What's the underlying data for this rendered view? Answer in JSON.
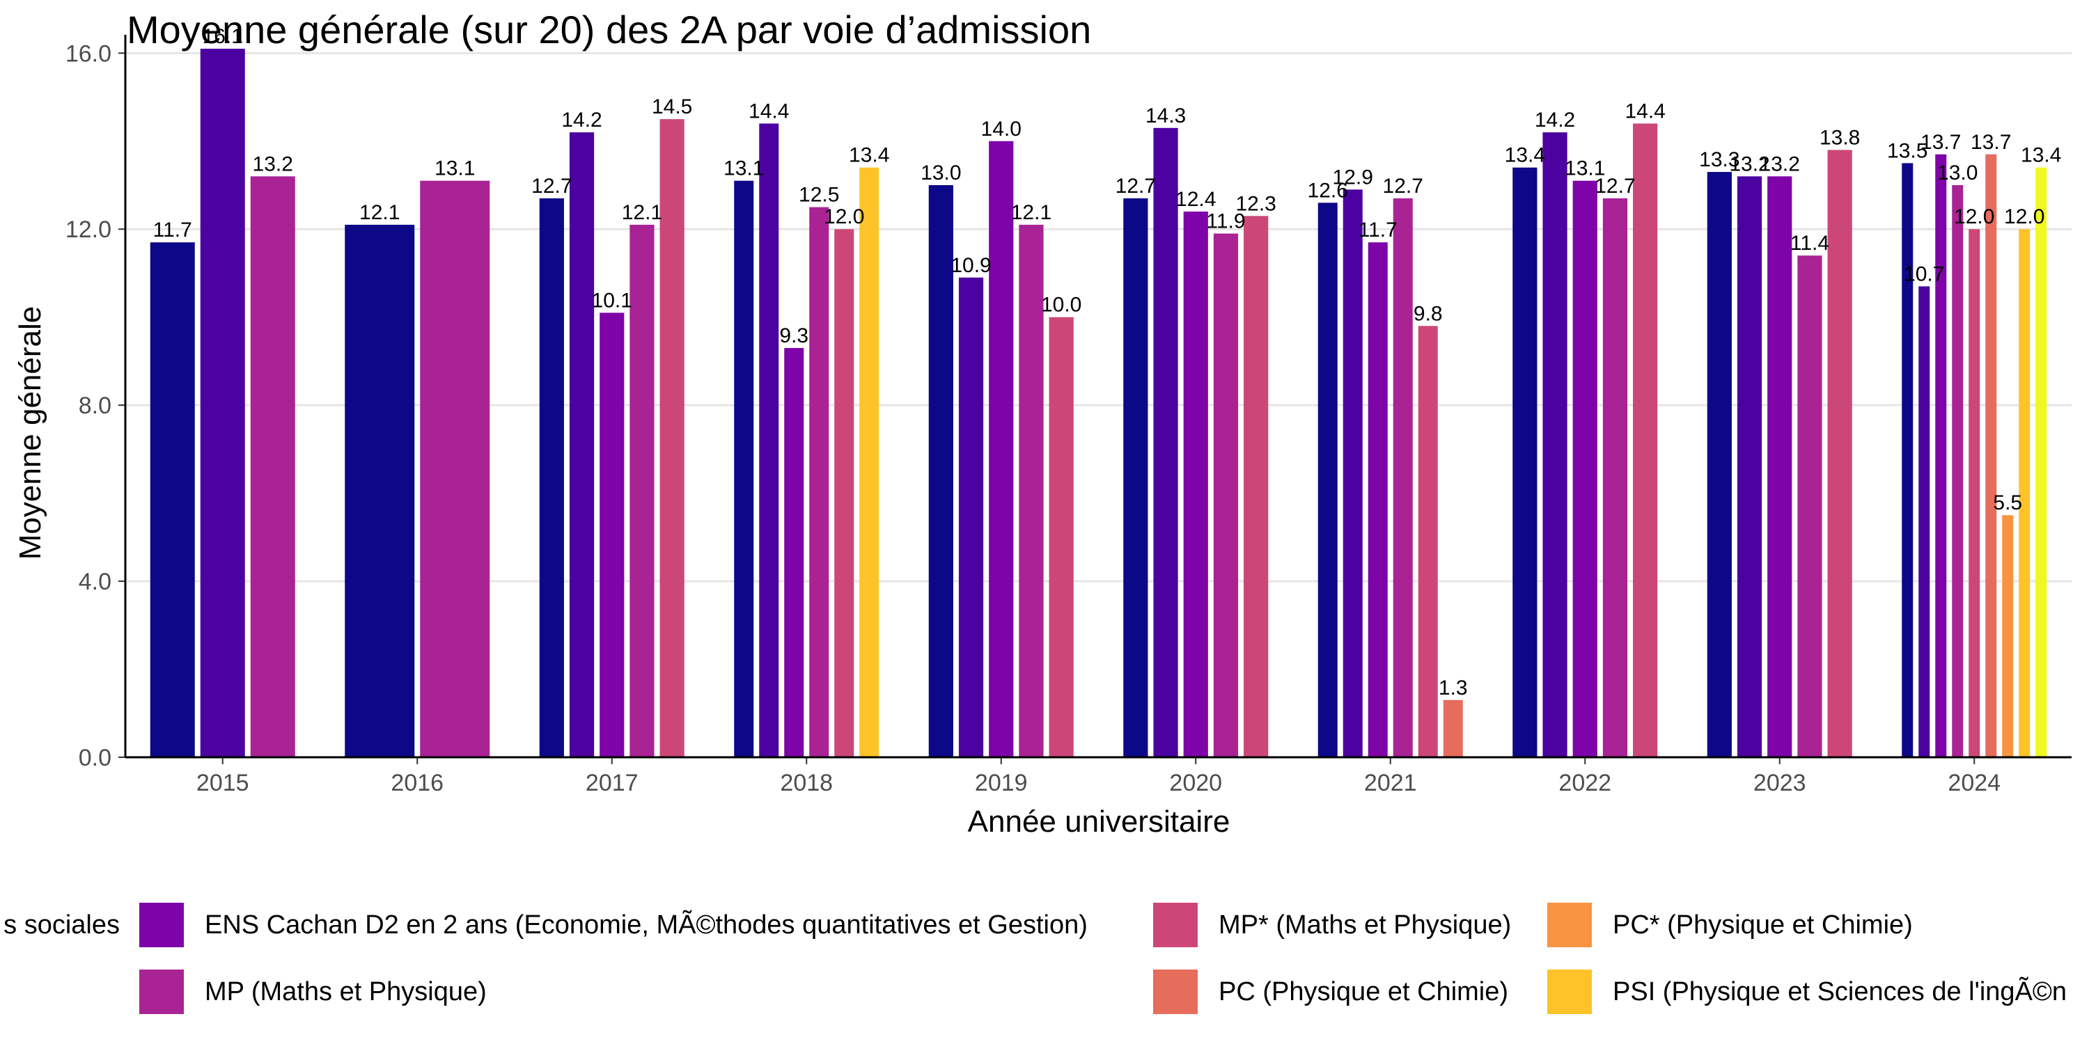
{
  "chart_data": {
    "type": "bar",
    "title": "Moyenne générale (sur 20) des 2A par voie d’admission",
    "xlabel": "Année universitaire",
    "ylabel": "Moyenne générale",
    "ylim": [
      0,
      16.1
    ],
    "yticks": [
      "0.0",
      "4.0",
      "8.0",
      "12.0",
      "16.0"
    ],
    "grid": "horizontal",
    "legend_position": "bottom",
    "categories": [
      "2015",
      "2016",
      "2017",
      "2018",
      "2019",
      "2020",
      "2021",
      "2022",
      "2023",
      "2024"
    ],
    "series": [
      {
        "name": "… sociales",
        "color": "#0D0887",
        "values": [
          11.7,
          12.1,
          12.7,
          13.1,
          13.0,
          12.7,
          12.6,
          13.4,
          13.3,
          13.5
        ],
        "labels": [
          "11.7",
          "12.1",
          "12.7",
          "13.1",
          "13.0",
          "12.7",
          "12.6",
          "13.4",
          "13.3",
          "13.5"
        ]
      },
      {
        "name": "",
        "color": "#4C02A1",
        "values": [
          16.1,
          null,
          14.2,
          14.4,
          10.9,
          14.3,
          12.9,
          14.2,
          13.2,
          10.7
        ],
        "labels": [
          "16.1",
          "",
          "14.2",
          "14.4",
          "10.9",
          "14.3",
          "12.9",
          "14.2",
          "13.2",
          "10.7"
        ]
      },
      {
        "name": "ENS Cachan D2 en 2 ans (Economie, MÃ©thodes quantitatives et Gestion)",
        "color": "#7E03A8",
        "values": [
          null,
          null,
          10.1,
          9.3,
          14.0,
          12.4,
          11.7,
          13.1,
          13.2,
          13.7
        ],
        "labels": [
          "",
          "",
          "10.1",
          "9.3",
          "14.0",
          "12.4",
          "11.7",
          "13.1",
          "13.2",
          "13.7"
        ]
      },
      {
        "name": "MP (Maths et Physique)",
        "color": "#A92395",
        "values": [
          13.2,
          13.1,
          12.1,
          12.5,
          12.1,
          11.9,
          12.7,
          12.7,
          11.4,
          13.0
        ],
        "labels": [
          "13.2",
          "13.1",
          "12.1",
          "12.5",
          "12.1",
          "11.9",
          "12.7",
          "12.7",
          "11.4",
          "13.0"
        ]
      },
      {
        "name": "MP* (Maths et Physique)",
        "color": "#CC4778",
        "values": [
          null,
          null,
          14.5,
          12.0,
          10.0,
          12.3,
          9.8,
          14.4,
          13.8,
          12.0
        ],
        "labels": [
          "",
          "",
          "14.5",
          "12.0",
          "10.0",
          "12.3",
          "9.8",
          "14.4",
          "13.8",
          "12.0"
        ]
      },
      {
        "name": "PC (Physique et Chimie)",
        "color": "#E66C5C",
        "values": [
          null,
          null,
          null,
          null,
          null,
          null,
          1.3,
          null,
          null,
          13.7
        ],
        "labels": [
          "",
          "",
          "",
          "",
          "",
          "",
          "1.3",
          "",
          "",
          "13.7"
        ]
      },
      {
        "name": "PC* (Physique et Chimie)",
        "color": "#F89441",
        "values": [
          null,
          null,
          null,
          null,
          null,
          null,
          null,
          null,
          null,
          5.5
        ],
        "labels": [
          "",
          "",
          "",
          "",
          "",
          "",
          "",
          "",
          "",
          "5.5"
        ]
      },
      {
        "name": "PSI (Physique et Sciences de l'ingÃ©n",
        "color": "#FDC328",
        "values": [
          null,
          null,
          null,
          13.4,
          null,
          null,
          null,
          null,
          null,
          12.0
        ],
        "labels": [
          "",
          "",
          "",
          "13.4",
          "",
          "",
          "",
          "",
          "",
          "12.0"
        ]
      },
      {
        "name": "",
        "color": "#F0F921",
        "values": [
          null,
          null,
          null,
          null,
          null,
          null,
          null,
          null,
          null,
          13.4
        ],
        "labels": [
          "",
          "",
          "",
          "",
          "",
          "",
          "",
          "",
          "",
          "13.4"
        ]
      }
    ]
  },
  "legend": {
    "items": [
      {
        "label": "s sociales",
        "color": "#0D0887"
      },
      {
        "label": "ENS Cachan D2 en 2 ans (Economie, MÃ©thodes quantitatives et Gestion)",
        "color": "#7E03A8"
      },
      {
        "label": "MP (Maths et Physique)",
        "color": "#A92395"
      },
      {
        "label": "MP* (Maths et Physique)",
        "color": "#CC4778"
      },
      {
        "label": "PC (Physique et Chimie)",
        "color": "#E66C5C"
      },
      {
        "label": "PC* (Physique et Chimie)",
        "color": "#F89441"
      },
      {
        "label": "PSI (Physique et Sciences de l'ingÃ©n",
        "color": "#FDC328"
      }
    ]
  }
}
